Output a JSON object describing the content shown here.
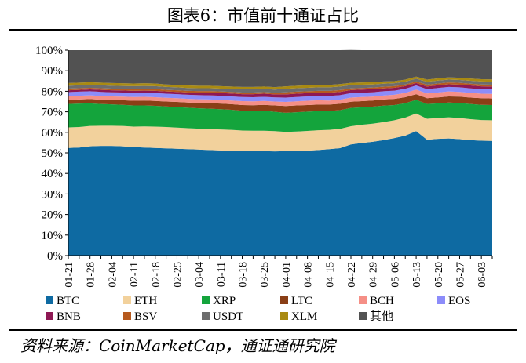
{
  "title": "图表6：市值前十通证占比",
  "source": "资料来源：CoinMarketCap，通证通研究院",
  "chart_data": {
    "type": "area",
    "stacked": true,
    "y_unit": "%",
    "ylim": [
      0,
      100
    ],
    "y_ticks": [
      "0%",
      "10%",
      "20%",
      "30%",
      "40%",
      "50%",
      "60%",
      "70%",
      "80%",
      "90%",
      "100%"
    ],
    "x": [
      "01-21",
      "01-24",
      "01-28",
      "01-31",
      "02-04",
      "02-07",
      "02-11",
      "02-14",
      "02-18",
      "02-21",
      "02-25",
      "02-28",
      "03-04",
      "03-07",
      "03-11",
      "03-14",
      "03-18",
      "03-21",
      "03-25",
      "03-28",
      "04-01",
      "04-04",
      "04-08",
      "04-11",
      "04-15",
      "04-18",
      "04-22",
      "04-25",
      "04-29",
      "05-02",
      "05-06",
      "05-09",
      "05-13",
      "05-16",
      "05-20",
      "05-23",
      "05-27",
      "05-30",
      "06-03",
      "06-06"
    ],
    "x_tick_labels": [
      "01-21",
      "01-28",
      "02-04",
      "02-11",
      "02-18",
      "02-25",
      "03-04",
      "03-11",
      "03-18",
      "03-25",
      "04-01",
      "04-08",
      "04-15",
      "04-22",
      "04-29",
      "05-06",
      "05-13",
      "05-20",
      "05-27",
      "06-03"
    ],
    "series": [
      {
        "name": "BTC",
        "color": "#0e6aa2",
        "values": [
          52.4,
          52.6,
          53.2,
          53.4,
          53.4,
          53.2,
          52.8,
          52.6,
          52.4,
          52.2,
          52.0,
          51.8,
          51.6,
          51.4,
          51.2,
          51.0,
          50.9,
          50.8,
          50.8,
          50.7,
          50.8,
          50.9,
          51.1,
          51.4,
          51.8,
          52.3,
          54.1,
          54.8,
          55.4,
          56.2,
          57.2,
          58.4,
          60.6,
          56.4,
          56.8,
          57.0,
          56.7,
          56.2,
          55.9,
          55.8
        ]
      },
      {
        "name": "ETH",
        "color": "#f2d19c",
        "values": [
          10.0,
          10.0,
          9.9,
          9.8,
          9.8,
          9.9,
          10.0,
          10.3,
          10.4,
          10.4,
          10.3,
          10.2,
          10.2,
          10.2,
          10.2,
          10.2,
          10.0,
          10.0,
          10.0,
          9.9,
          9.4,
          9.5,
          9.6,
          9.6,
          9.4,
          9.4,
          8.9,
          8.9,
          8.8,
          8.8,
          8.7,
          8.8,
          8.6,
          10.2,
          10.2,
          10.3,
          10.3,
          10.2,
          10.1,
          10.1
        ]
      },
      {
        "name": "XRP",
        "color": "#14a43c",
        "values": [
          11.4,
          11.4,
          11.0,
          10.6,
          10.4,
          10.3,
          10.3,
          10.2,
          10.1,
          10.0,
          10.0,
          10.0,
          9.9,
          9.9,
          9.9,
          9.8,
          9.6,
          9.6,
          9.7,
          9.4,
          9.3,
          9.4,
          9.4,
          9.3,
          9.2,
          9.1,
          8.9,
          8.5,
          8.3,
          8.0,
          7.4,
          7.0,
          6.6,
          7.2,
          7.1,
          7.2,
          7.3,
          7.4,
          7.4,
          7.4
        ]
      },
      {
        "name": "LTC",
        "color": "#8a3f16",
        "values": [
          2.0,
          2.0,
          2.1,
          2.1,
          2.1,
          2.2,
          2.3,
          2.4,
          2.4,
          2.4,
          2.5,
          2.5,
          2.6,
          2.7,
          2.7,
          2.7,
          2.8,
          2.8,
          2.9,
          3.1,
          3.3,
          3.3,
          3.2,
          3.2,
          3.1,
          3.1,
          3.0,
          3.0,
          3.0,
          3.0,
          3.0,
          2.9,
          2.8,
          2.8,
          2.9,
          3.0,
          3.1,
          3.1,
          3.2,
          3.2
        ]
      },
      {
        "name": "BCH",
        "color": "#f58f86",
        "values": [
          1.8,
          1.8,
          1.8,
          1.8,
          1.8,
          1.8,
          1.8,
          1.8,
          1.8,
          1.8,
          1.8,
          1.8,
          1.8,
          1.8,
          1.8,
          1.8,
          1.9,
          1.9,
          1.9,
          1.9,
          2.0,
          2.0,
          2.1,
          2.1,
          2.0,
          2.0,
          2.0,
          2.0,
          1.9,
          1.9,
          2.0,
          2.1,
          2.2,
          2.3,
          2.4,
          2.4,
          2.3,
          2.3,
          2.2,
          2.2
        ]
      },
      {
        "name": "EOS",
        "color": "#8c8cfa",
        "values": [
          2.0,
          2.0,
          2.0,
          2.0,
          2.0,
          2.0,
          2.0,
          2.0,
          2.0,
          2.0,
          2.0,
          2.0,
          2.0,
          2.0,
          2.0,
          2.0,
          2.0,
          2.0,
          2.0,
          2.0,
          2.1,
          2.1,
          2.1,
          2.1,
          2.2,
          2.2,
          2.2,
          2.1,
          2.1,
          2.1,
          2.0,
          2.0,
          2.0,
          2.1,
          2.2,
          2.2,
          2.2,
          2.2,
          2.2,
          2.2
        ]
      },
      {
        "name": "BNB",
        "color": "#8e1854",
        "values": [
          0.9,
          0.9,
          0.9,
          1.0,
          1.0,
          1.0,
          1.0,
          1.0,
          1.1,
          1.1,
          1.1,
          1.1,
          1.2,
          1.3,
          1.3,
          1.4,
          1.4,
          1.5,
          1.5,
          1.5,
          1.6,
          1.6,
          1.6,
          1.6,
          1.6,
          1.6,
          1.5,
          1.5,
          1.5,
          1.4,
          1.4,
          1.3,
          1.2,
          1.3,
          1.3,
          1.3,
          1.3,
          1.4,
          1.4,
          1.4
        ]
      },
      {
        "name": "BSV",
        "color": "#b65a1e",
        "values": [
          0.8,
          0.8,
          0.8,
          0.8,
          0.8,
          0.8,
          0.9,
          0.9,
          0.9,
          0.8,
          0.8,
          0.8,
          0.8,
          0.8,
          0.8,
          0.8,
          0.8,
          0.8,
          0.8,
          0.8,
          1.0,
          1.0,
          0.9,
          0.9,
          0.9,
          0.9,
          0.8,
          0.8,
          0.8,
          0.8,
          0.8,
          0.8,
          0.8,
          0.9,
          0.9,
          0.9,
          0.9,
          0.9,
          0.9,
          0.9
        ]
      },
      {
        "name": "USDT",
        "color": "#6d6d6d",
        "values": [
          1.4,
          1.4,
          1.4,
          1.4,
          1.4,
          1.4,
          1.4,
          1.4,
          1.4,
          1.4,
          1.4,
          1.4,
          1.4,
          1.4,
          1.4,
          1.4,
          1.5,
          1.5,
          1.5,
          1.5,
          1.7,
          1.7,
          1.7,
          1.7,
          1.7,
          1.7,
          1.6,
          1.6,
          1.5,
          1.5,
          1.4,
          1.4,
          1.3,
          1.4,
          1.4,
          1.4,
          1.4,
          1.4,
          1.5,
          1.5
        ]
      },
      {
        "name": "XLM",
        "color": "#a98a12",
        "values": [
          1.3,
          1.3,
          1.3,
          1.3,
          1.3,
          1.3,
          1.3,
          1.3,
          1.3,
          1.2,
          1.2,
          1.2,
          1.2,
          1.2,
          1.2,
          1.2,
          1.2,
          1.2,
          1.2,
          1.2,
          1.2,
          1.2,
          1.2,
          1.2,
          1.2,
          1.2,
          1.1,
          1.1,
          1.1,
          1.1,
          1.0,
          1.0,
          1.0,
          1.1,
          1.1,
          1.1,
          1.1,
          1.1,
          1.1,
          1.1
        ]
      },
      {
        "name": "其他",
        "color": "#525252",
        "values": [
          16.0,
          15.8,
          15.6,
          15.8,
          16.0,
          16.1,
          16.2,
          16.1,
          16.2,
          16.7,
          16.9,
          17.2,
          17.3,
          17.3,
          17.5,
          17.7,
          17.9,
          17.9,
          17.7,
          18.0,
          17.6,
          17.3,
          17.1,
          16.9,
          16.9,
          16.5,
          16.0,
          15.7,
          15.6,
          15.2,
          15.1,
          14.3,
          12.9,
          13.3,
          12.7,
          12.2,
          12.4,
          12.8,
          13.1,
          13.2
        ]
      }
    ],
    "legend_position": "bottom",
    "grid": false
  }
}
